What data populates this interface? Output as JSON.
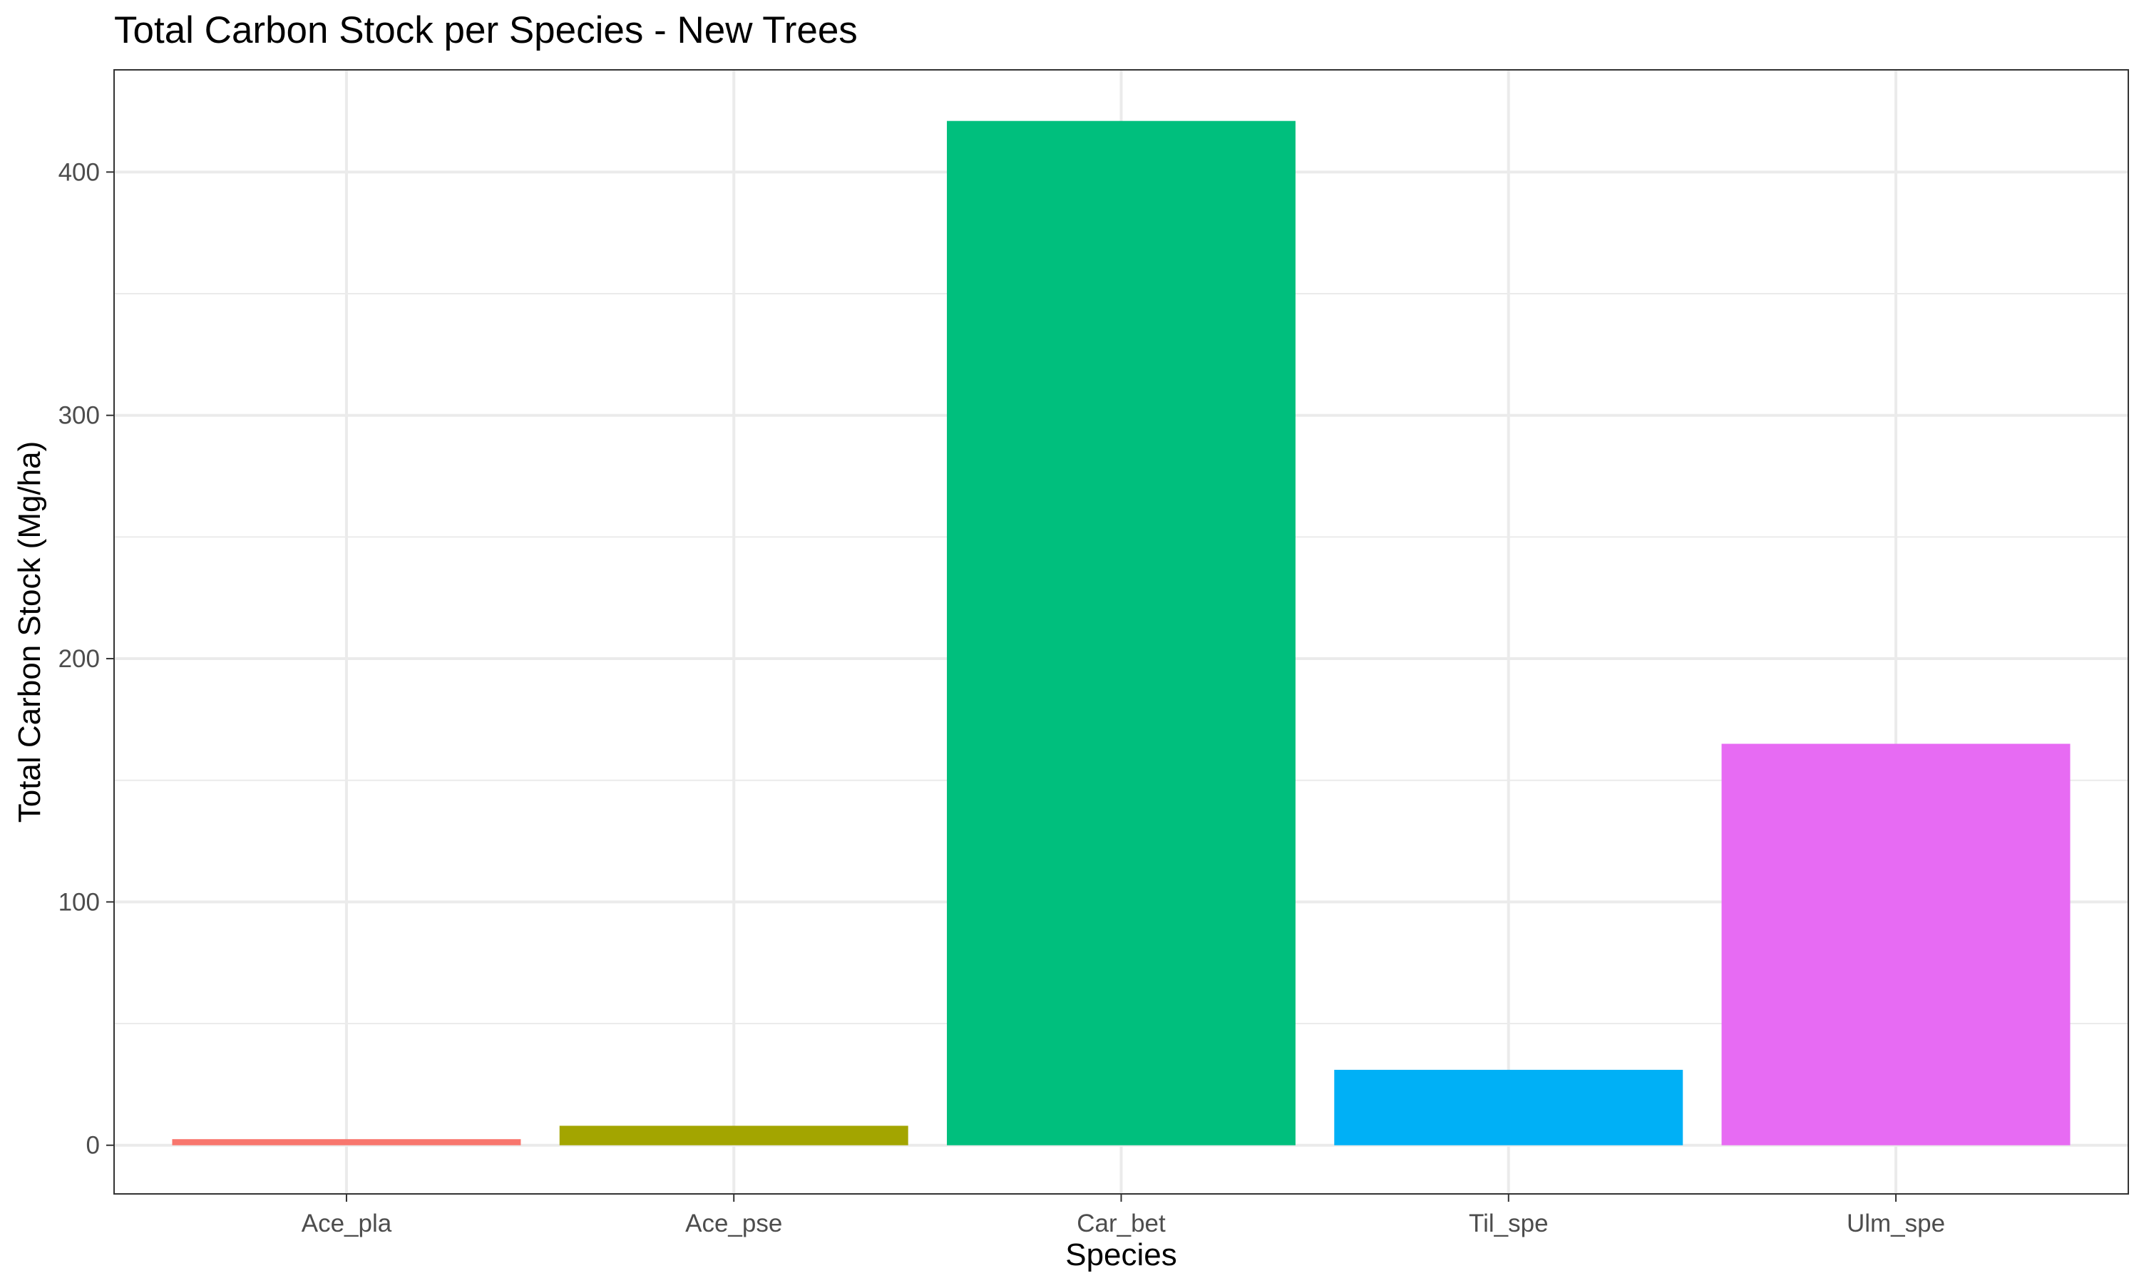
{
  "chart_data": {
    "type": "bar",
    "title": "Total Carbon Stock per Species - New Trees",
    "xlabel": "Species",
    "ylabel": "Total Carbon Stock (Mg/ha)",
    "categories": [
      "Ace_pla",
      "Ace_pse",
      "Car_bet",
      "Til_spe",
      "Ulm_spe"
    ],
    "values": [
      2.5,
      8.0,
      421.0,
      31.0,
      165.0
    ],
    "colors": [
      "#F8766D",
      "#A3A500",
      "#00BF7D",
      "#00B0F6",
      "#E76BF3"
    ],
    "ylim": [
      -20,
      442
    ],
    "yticks": [
      0,
      100,
      200,
      300,
      400
    ],
    "ytick_labels": [
      "0",
      "100",
      "200",
      "300",
      "400"
    ],
    "grid": true,
    "legend": "none"
  }
}
